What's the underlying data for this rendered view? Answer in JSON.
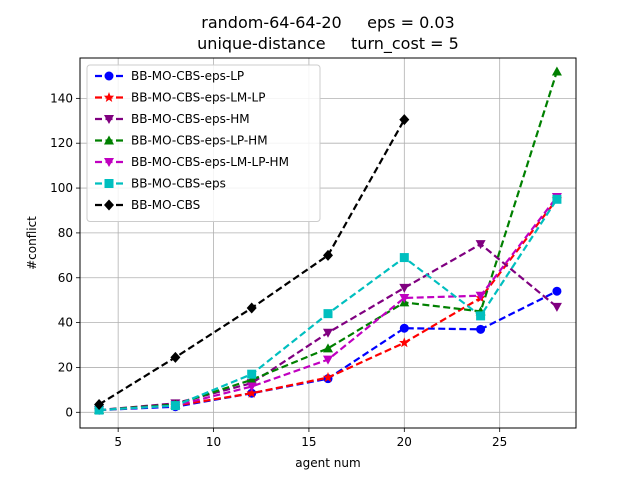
{
  "chart_data": {
    "type": "line",
    "title_line1": "random-64-64-20     eps = 0.03",
    "title_line2": "unique-distance     turn_cost = 5",
    "xlabel": "agent num",
    "ylabel": "#conflict",
    "xlim": [
      3,
      29
    ],
    "ylim": [
      -7,
      158
    ],
    "xticks": [
      5,
      10,
      15,
      20,
      25
    ],
    "yticks": [
      0,
      20,
      40,
      60,
      80,
      100,
      120,
      140
    ],
    "grid": true,
    "legend_position": "upper-left",
    "x": [
      4,
      8,
      12,
      16,
      20,
      24,
      28
    ],
    "series": [
      {
        "name": "BB-MO-CBS-eps-LP",
        "color": "#0000ff",
        "marker": "circle",
        "values": [
          1,
          2.5,
          8.5,
          15,
          37.5,
          37,
          54
        ]
      },
      {
        "name": "BB-MO-CBS-eps-LM-LP",
        "color": "#ff0000",
        "marker": "star",
        "values": [
          1,
          3,
          8.5,
          15.5,
          31,
          51,
          95
        ]
      },
      {
        "name": "BB-MO-CBS-eps-HM",
        "color": "#800080",
        "marker": "triangle-down",
        "values": [
          1,
          4,
          13,
          35.5,
          55.5,
          75,
          47
        ]
      },
      {
        "name": "BB-MO-CBS-eps-LP-HM",
        "color": "#008000",
        "marker": "triangle-up",
        "values": [
          1,
          3.5,
          14.5,
          28.5,
          49,
          45,
          152
        ]
      },
      {
        "name": "BB-MO-CBS-eps-LM-LP-HM",
        "color": "#c000c0",
        "marker": "triangle-down",
        "values": [
          1,
          3,
          11.5,
          23.5,
          51,
          52,
          96
        ]
      },
      {
        "name": "BB-MO-CBS-eps",
        "color": "#00bfbf",
        "marker": "square",
        "values": [
          1,
          3,
          17,
          44,
          69,
          43,
          95
        ]
      },
      {
        "name": "BB-MO-CBS",
        "color": "#000000",
        "marker": "diamond",
        "values": [
          3.5,
          24.5,
          46.5,
          70,
          130.5,
          null,
          null
        ]
      }
    ]
  }
}
